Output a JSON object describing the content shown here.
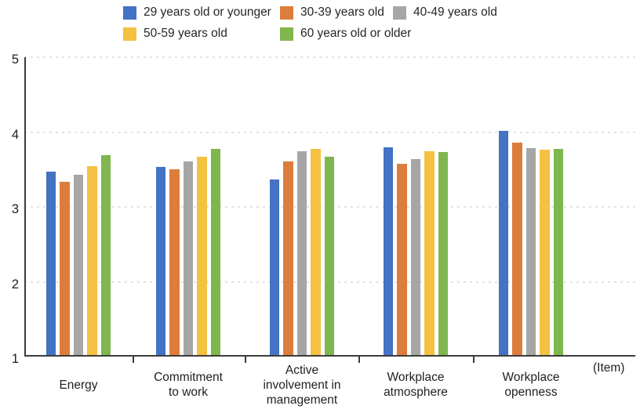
{
  "chart_data": {
    "type": "bar",
    "title": "",
    "xlabel": "",
    "ylabel": "",
    "axis_unit_label": "(Item)",
    "ylim": [
      1,
      5
    ],
    "yticks": [
      1,
      2,
      3,
      4,
      5
    ],
    "grid": "horizontal-dashed",
    "legend_position": "top",
    "categories": [
      "Energy",
      "Commitment\nto work",
      "Active\ninvolvement in\nmanagement",
      "Workplace\natmosphere",
      "Workplace\nopenness"
    ],
    "series": [
      {
        "name": "29 years old or younger",
        "color": "#4472C4",
        "values": [
          3.47,
          3.53,
          3.37,
          3.8,
          4.02
        ]
      },
      {
        "name": "30-39 years old",
        "color": "#DD7D3B",
        "values": [
          3.34,
          3.5,
          3.61,
          3.58,
          3.86
        ]
      },
      {
        "name": "40-49 years old",
        "color": "#A6A6A6",
        "values": [
          3.43,
          3.61,
          3.74,
          3.64,
          3.79
        ]
      },
      {
        "name": "50-59 years old",
        "color": "#F5C142",
        "values": [
          3.54,
          3.67,
          3.77,
          3.74,
          3.76
        ]
      },
      {
        "name": "60 years old or older",
        "color": "#7FB64E",
        "values": [
          3.69,
          3.77,
          3.67,
          3.73,
          3.78
        ]
      }
    ],
    "colors": {
      "axis": "#3c3c3c",
      "gridline": "#e2e2e2",
      "text": "#1f1f1f"
    }
  }
}
